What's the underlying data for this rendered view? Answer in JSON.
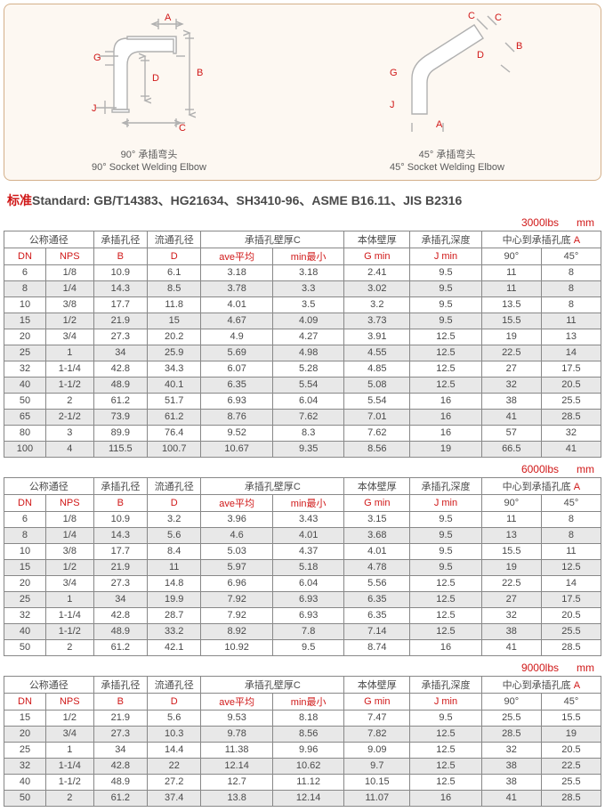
{
  "diagrams": {
    "left": {
      "caption_zh": "90° 承插弯头",
      "caption_en": "90° Socket Welding Elbow"
    },
    "right": {
      "caption_zh": "45° 承插弯头",
      "caption_en": "45° Socket Welding Elbow"
    },
    "labels": [
      "A",
      "B",
      "C",
      "D",
      "G",
      "J"
    ],
    "stroke": "#b0b0b0",
    "arrow": "#b0b0b0",
    "label_color": "#d01818"
  },
  "standard": {
    "prefix_zh": "标准",
    "prefix_en": "Standard:",
    "text": "GB/T14383、HG21634、SH3410-96、ASME B16.11、JIS B2316"
  },
  "unit_label": "mm",
  "header_groups": {
    "g1": {
      "zh": "公称通径",
      "sub1": "DN",
      "sub2": "NPS"
    },
    "g2": {
      "zh": "承插孔径",
      "sub": "B"
    },
    "g3": {
      "zh": "流通孔径",
      "sub": "D"
    },
    "g4": {
      "zh": "承插孔壁厚C",
      "sub1": "ave平均",
      "sub2": "min最小"
    },
    "g5": {
      "zh": "本体壁厚",
      "sub": "G min"
    },
    "g6": {
      "zh": "承插孔深度",
      "sub": "J min"
    },
    "g7": {
      "zh": "中心到承插孔底 A",
      "sub1": "90°",
      "sub2": "45°"
    }
  },
  "tables": [
    {
      "rating": "3000lbs",
      "rows": [
        [
          "6",
          "1/8",
          "10.9",
          "6.1",
          "3.18",
          "3.18",
          "2.41",
          "9.5",
          "11",
          "8"
        ],
        [
          "8",
          "1/4",
          "14.3",
          "8.5",
          "3.78",
          "3.3",
          "3.02",
          "9.5",
          "11",
          "8"
        ],
        [
          "10",
          "3/8",
          "17.7",
          "11.8",
          "4.01",
          "3.5",
          "3.2",
          "9.5",
          "13.5",
          "8"
        ],
        [
          "15",
          "1/2",
          "21.9",
          "15",
          "4.67",
          "4.09",
          "3.73",
          "9.5",
          "15.5",
          "11"
        ],
        [
          "20",
          "3/4",
          "27.3",
          "20.2",
          "4.9",
          "4.27",
          "3.91",
          "12.5",
          "19",
          "13"
        ],
        [
          "25",
          "1",
          "34",
          "25.9",
          "5.69",
          "4.98",
          "4.55",
          "12.5",
          "22.5",
          "14"
        ],
        [
          "32",
          "1-1/4",
          "42.8",
          "34.3",
          "6.07",
          "5.28",
          "4.85",
          "12.5",
          "27",
          "17.5"
        ],
        [
          "40",
          "1-1/2",
          "48.9",
          "40.1",
          "6.35",
          "5.54",
          "5.08",
          "12.5",
          "32",
          "20.5"
        ],
        [
          "50",
          "2",
          "61.2",
          "51.7",
          "6.93",
          "6.04",
          "5.54",
          "16",
          "38",
          "25.5"
        ],
        [
          "65",
          "2-1/2",
          "73.9",
          "61.2",
          "8.76",
          "7.62",
          "7.01",
          "16",
          "41",
          "28.5"
        ],
        [
          "80",
          "3",
          "89.9",
          "76.4",
          "9.52",
          "8.3",
          "7.62",
          "16",
          "57",
          "32"
        ],
        [
          "100",
          "4",
          "115.5",
          "100.7",
          "10.67",
          "9.35",
          "8.56",
          "19",
          "66.5",
          "41"
        ]
      ]
    },
    {
      "rating": "6000lbs",
      "rows": [
        [
          "6",
          "1/8",
          "10.9",
          "3.2",
          "3.96",
          "3.43",
          "3.15",
          "9.5",
          "11",
          "8"
        ],
        [
          "8",
          "1/4",
          "14.3",
          "5.6",
          "4.6",
          "4.01",
          "3.68",
          "9.5",
          "13",
          "8"
        ],
        [
          "10",
          "3/8",
          "17.7",
          "8.4",
          "5.03",
          "4.37",
          "4.01",
          "9.5",
          "15.5",
          "11"
        ],
        [
          "15",
          "1/2",
          "21.9",
          "11",
          "5.97",
          "5.18",
          "4.78",
          "9.5",
          "19",
          "12.5"
        ],
        [
          "20",
          "3/4",
          "27.3",
          "14.8",
          "6.96",
          "6.04",
          "5.56",
          "12.5",
          "22.5",
          "14"
        ],
        [
          "25",
          "1",
          "34",
          "19.9",
          "7.92",
          "6.93",
          "6.35",
          "12.5",
          "27",
          "17.5"
        ],
        [
          "32",
          "1-1/4",
          "42.8",
          "28.7",
          "7.92",
          "6.93",
          "6.35",
          "12.5",
          "32",
          "20.5"
        ],
        [
          "40",
          "1-1/2",
          "48.9",
          "33.2",
          "8.92",
          "7.8",
          "7.14",
          "12.5",
          "38",
          "25.5"
        ],
        [
          "50",
          "2",
          "61.2",
          "42.1",
          "10.92",
          "9.5",
          "8.74",
          "16",
          "41",
          "28.5"
        ]
      ]
    },
    {
      "rating": "9000lbs",
      "rows": [
        [
          "15",
          "1/2",
          "21.9",
          "5.6",
          "9.53",
          "8.18",
          "7.47",
          "9.5",
          "25.5",
          "15.5"
        ],
        [
          "20",
          "3/4",
          "27.3",
          "10.3",
          "9.78",
          "8.56",
          "7.82",
          "12.5",
          "28.5",
          "19"
        ],
        [
          "25",
          "1",
          "34",
          "14.4",
          "11.38",
          "9.96",
          "9.09",
          "12.5",
          "32",
          "20.5"
        ],
        [
          "32",
          "1-1/4",
          "42.8",
          "22",
          "12.14",
          "10.62",
          "9.7",
          "12.5",
          "38",
          "22.5"
        ],
        [
          "40",
          "1-1/2",
          "48.9",
          "27.2",
          "12.7",
          "11.12",
          "10.15",
          "12.5",
          "38",
          "25.5"
        ],
        [
          "50",
          "2",
          "61.2",
          "37.4",
          "13.8",
          "12.14",
          "11.07",
          "16",
          "41",
          "28.5"
        ]
      ]
    }
  ],
  "col_widths": [
    "7%",
    "8%",
    "9%",
    "9%",
    "12%",
    "12%",
    "11%",
    "12%",
    "10%",
    "10%"
  ]
}
